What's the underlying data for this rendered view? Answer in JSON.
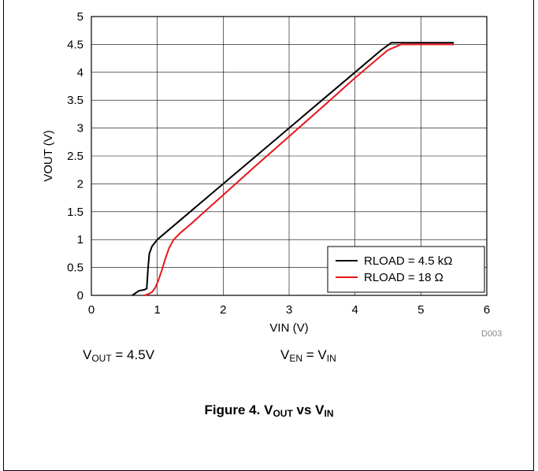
{
  "chart_data": {
    "type": "line",
    "xlabel": "VIN (V)",
    "ylabel": "VOUT (V)",
    "xlim": [
      0,
      6
    ],
    "ylim": [
      0,
      5
    ],
    "xticks": [
      "0",
      "1",
      "2",
      "3",
      "4",
      "5",
      "6"
    ],
    "yticks": [
      "0",
      "0.5",
      "1",
      "1.5",
      "2",
      "2.5",
      "3",
      "3.5",
      "4",
      "4.5",
      "5"
    ],
    "grid": true,
    "legend_position": "bottom-right",
    "series": [
      {
        "name": "RLOAD = 4.5 kΩ",
        "color": "#000000",
        "x": [
          0.62,
          0.72,
          0.8,
          0.84,
          0.86,
          0.88,
          0.92,
          1.0,
          1.5,
          2.0,
          2.5,
          3.0,
          3.5,
          4.0,
          4.4,
          4.55,
          5.5
        ],
        "y": [
          0.0,
          0.08,
          0.1,
          0.12,
          0.5,
          0.75,
          0.88,
          1.0,
          1.5,
          2.0,
          2.5,
          3.0,
          3.5,
          4.0,
          4.4,
          4.53,
          4.53
        ]
      },
      {
        "name": "RLOAD = 18 Ω",
        "color": "#e8141b",
        "x": [
          0.8,
          0.86,
          0.92,
          0.97,
          1.02,
          1.07,
          1.12,
          1.18,
          1.25,
          1.35,
          1.5,
          2.0,
          2.5,
          3.0,
          3.5,
          4.0,
          4.5,
          4.7,
          5.5
        ],
        "y": [
          0.0,
          0.02,
          0.06,
          0.14,
          0.28,
          0.45,
          0.65,
          0.85,
          1.0,
          1.12,
          1.27,
          1.8,
          2.33,
          2.85,
          3.37,
          3.9,
          4.4,
          4.5,
          4.5
        ]
      }
    ]
  },
  "watermark": "D003",
  "notes": {
    "vout_sym": "V",
    "vout_sub": "OUT",
    "vout_rest": " = 4.5V",
    "ven_sym": "V",
    "ven_sub": "EN",
    "ven_mid": " = V",
    "ven_sub2": "IN"
  },
  "caption": {
    "prefix": "Figure 4. V",
    "sub1": "OUT",
    "mid": " vs V",
    "sub2": "IN"
  }
}
